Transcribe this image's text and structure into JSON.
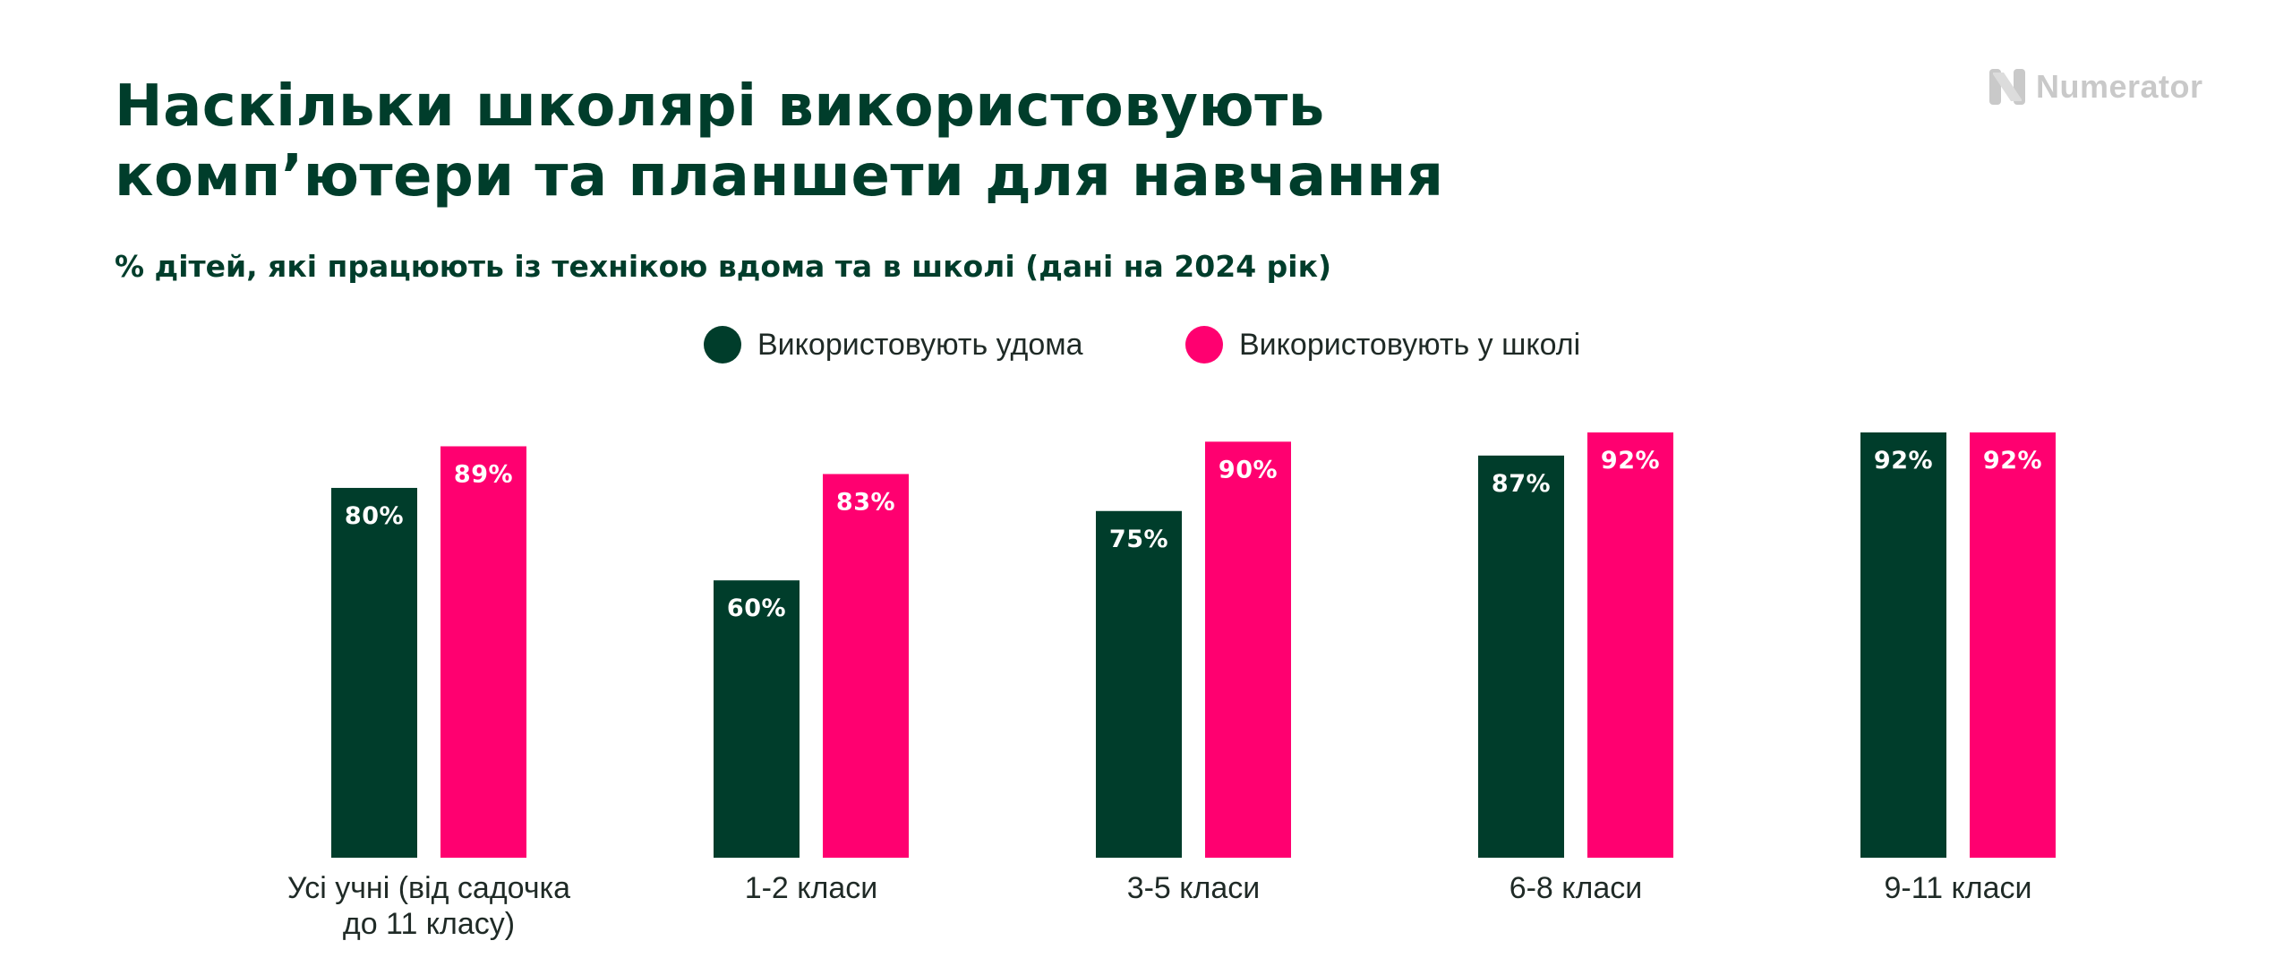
{
  "title_lines": [
    "Наскільки школярі використовують",
    "комп’ютери та планшети для навчання"
  ],
  "subtitle": "% дітей, які працюють із технікою вдома та в школі (дані на 2024 рік)",
  "logo": {
    "text": "Numerator",
    "icon": "numerator-n-logo-icon"
  },
  "colors": {
    "home": "#003d2b",
    "school": "#ff0070",
    "title": "#003d2b",
    "logo": "#c9c9c9"
  },
  "legend": [
    {
      "name": "Використовують удома",
      "color": "#003d2b"
    },
    {
      "name": "Використовують у школі",
      "color": "#ff0070"
    }
  ],
  "chart_data": {
    "type": "bar",
    "title": "Наскільки школярі використовують комп’ютери та планшети для навчання",
    "subtitle": "% дітей, які працюють із технікою вдома та в школі (дані на 2024 рік)",
    "categories": [
      [
        "Усі учні (від садочка",
        "до 11 класу)"
      ],
      [
        "1-2 класи"
      ],
      [
        "3-5 класи"
      ],
      [
        "6-8 класи"
      ],
      [
        "9-11 класи"
      ]
    ],
    "series": [
      {
        "name": "Використовують удома",
        "values": [
          80,
          60,
          75,
          87,
          92
        ]
      },
      {
        "name": "Використовують у школі",
        "values": [
          89,
          83,
          90,
          92,
          92
        ]
      }
    ],
    "value_suffix": "%",
    "ylim": [
      0,
      92
    ],
    "grid": false,
    "legend_position": "top-center",
    "xlabel": "",
    "ylabel": ""
  }
}
